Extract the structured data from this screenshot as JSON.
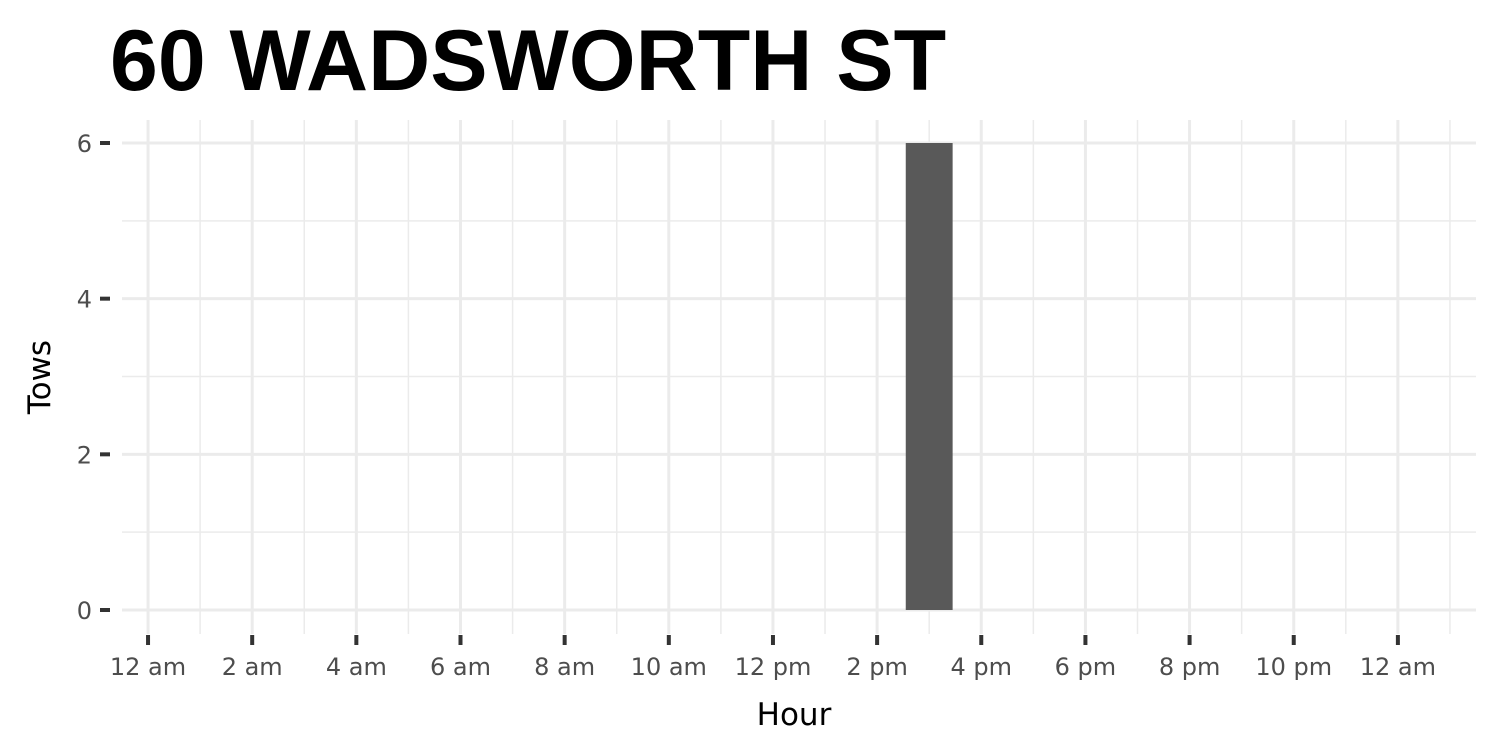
{
  "chart_data": {
    "type": "bar",
    "title": "60 WADSWORTH ST",
    "xlabel": "Hour",
    "ylabel": "Tows",
    "x_unit": "hour of day",
    "xlim": [
      -0.5,
      25.5
    ],
    "ylim": [
      0,
      6
    ],
    "x_tick_values": [
      0,
      2,
      4,
      6,
      8,
      10,
      12,
      14,
      16,
      18,
      20,
      22,
      24
    ],
    "x_tick_labels": [
      "12 am",
      "2 am",
      "4 am",
      "6 am",
      "8 am",
      "10 am",
      "12 pm",
      "2 pm",
      "4 pm",
      "6 pm",
      "8 pm",
      "10 pm",
      "12 am"
    ],
    "y_tick_values": [
      0,
      2,
      4,
      6
    ],
    "y_tick_labels": [
      "0",
      "2",
      "4",
      "6"
    ],
    "grid": true,
    "bar_color": "#595959",
    "bars": [
      {
        "hour": 15,
        "value": 6
      }
    ]
  }
}
